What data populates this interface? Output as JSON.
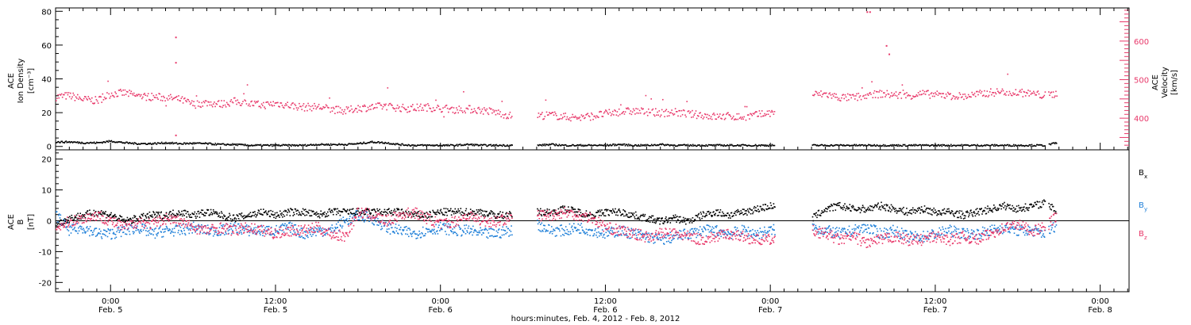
{
  "colors": {
    "density": "#000000",
    "velocity": "#e8386a",
    "bx": "#000000",
    "by": "#1e7fd8",
    "bz": "#e8386a",
    "axis": "#000000"
  },
  "footer": {
    "time_axis_label": "hours:minutes, Feb.  4, 2012 - Feb.  8, 2012"
  },
  "time_ticks": [
    {
      "hour": 4.0,
      "time": "0:00",
      "date": "Feb. 5"
    },
    {
      "hour": 16.0,
      "time": "12:00",
      "date": "Feb. 5"
    },
    {
      "hour": 28.0,
      "time": "0:00",
      "date": "Feb. 6"
    },
    {
      "hour": 40.0,
      "time": "12:00",
      "date": "Feb. 6"
    },
    {
      "hour": 52.0,
      "time": "0:00",
      "date": "Feb. 7"
    },
    {
      "hour": 64.0,
      "time": "12:00",
      "date": "Feb. 7"
    },
    {
      "hour": 76.0,
      "time": "0:00",
      "date": "Feb. 8"
    }
  ],
  "chart_data": [
    {
      "type": "scatter",
      "panel": "plasma",
      "x_unit": "hours after Feb. 4, 2012 20:00",
      "xlim": [
        0,
        78.1
      ],
      "ylabel_left": [
        "ACE",
        "Ion Density",
        "[cm⁻³]"
      ],
      "ylabel_right": [
        "ACE",
        "Velocity",
        "[km/s]"
      ],
      "ylim_left": [
        -2,
        82
      ],
      "ylim_right": [
        318,
        686
      ],
      "yticks_left": [
        "0",
        "20",
        "40",
        "60",
        "80"
      ],
      "yticks_right": [
        "400",
        "500",
        "600"
      ],
      "series": [
        {
          "key": "density",
          "axis": "left",
          "x": [
            0,
            1,
            2,
            3,
            4,
            5,
            6,
            7,
            8,
            9,
            10,
            11,
            12,
            13,
            14,
            15,
            16,
            17,
            18,
            19,
            20,
            21,
            22,
            23,
            24,
            25,
            26,
            27,
            28,
            29,
            30,
            31,
            32,
            33,
            35,
            36,
            37,
            38,
            39,
            40,
            41,
            42,
            43,
            44,
            45,
            46,
            47,
            48,
            49,
            50,
            51,
            52,
            53,
            55,
            56,
            57,
            58,
            59,
            60,
            61,
            62,
            63,
            64,
            65,
            66,
            67,
            68,
            69,
            70,
            71,
            72,
            72.8
          ],
          "y": [
            3,
            3,
            2.5,
            2.5,
            3.5,
            2.5,
            2,
            2,
            2.5,
            2,
            2.2,
            2,
            1.5,
            1.5,
            1,
            1,
            1,
            1,
            1,
            1.5,
            1.5,
            1.5,
            2,
            3,
            2.5,
            1.5,
            1,
            1,
            1,
            1,
            1.5,
            1,
            1,
            1,
            1,
            1.5,
            1,
            1,
            1,
            1,
            1.5,
            1,
            1,
            1.5,
            1,
            1,
            1,
            1,
            1,
            1,
            1,
            1,
            1,
            1,
            1,
            1,
            1,
            1,
            1,
            1,
            1,
            1,
            1,
            1,
            1,
            1,
            1,
            1,
            1,
            1,
            1,
            2.5
          ]
        },
        {
          "key": "velocity",
          "axis": "right",
          "x": [
            0,
            1,
            2,
            3,
            4,
            5,
            6,
            7,
            8,
            9,
            10,
            11,
            12,
            13,
            14,
            15,
            16,
            17,
            18,
            19,
            20,
            21,
            22,
            23,
            24,
            25,
            26,
            27,
            28,
            29,
            30,
            31,
            32,
            33,
            35,
            36,
            37,
            38,
            39,
            40,
            41,
            42,
            43,
            44,
            45,
            46,
            47,
            48,
            49,
            50,
            51,
            52,
            53,
            55,
            56,
            57,
            58,
            59,
            60,
            61,
            62,
            63,
            64,
            65,
            66,
            67,
            68,
            69,
            70,
            71,
            72,
            72.8
          ],
          "y": [
            457,
            460,
            450,
            447,
            465,
            467,
            458,
            457,
            455,
            450,
            437,
            442,
            438,
            445,
            440,
            435,
            440,
            435,
            430,
            431,
            425,
            420,
            428,
            430,
            433,
            428,
            428,
            430,
            427,
            425,
            425,
            422,
            417,
            408,
            408,
            410,
            405,
            403,
            407,
            413,
            418,
            420,
            418,
            415,
            417,
            412,
            410,
            405,
            407,
            404,
            410,
            415,
            422,
            463,
            464,
            455,
            455,
            460,
            465,
            462,
            460,
            465,
            462,
            460,
            458,
            463,
            468,
            470,
            468,
            465,
            460,
            465
          ]
        },
        {
          "key": "velocity_spikes",
          "axis": "left",
          "x": [
            8.7,
            8.7,
            8.7,
            59.0,
            59.2,
            60.4,
            60.6
          ],
          "y": [
            65,
            50,
            7,
            80,
            80,
            60,
            55
          ]
        }
      ]
    },
    {
      "type": "scatter",
      "panel": "magnetic_field",
      "x_unit": "hours after Feb. 4, 2012 20:00",
      "xlim": [
        0,
        78.1
      ],
      "ylabel_left": [
        "ACE",
        "B",
        "[nT]"
      ],
      "ylim": [
        -23,
        23
      ],
      "yticks": [
        "-20",
        "-10",
        "0",
        "10",
        "20"
      ],
      "series": [
        {
          "key": "bx",
          "name": "B",
          "subscript": "x",
          "x": [
            0,
            1,
            2,
            3,
            4,
            5,
            6,
            7,
            8,
            9,
            10,
            11,
            12,
            13,
            14,
            15,
            16,
            17,
            18,
            19,
            20,
            21,
            22,
            23,
            24,
            25,
            26,
            27,
            28,
            29,
            30,
            31,
            32,
            33,
            35,
            36,
            37,
            38,
            39,
            40,
            41,
            42,
            43,
            44,
            45,
            46,
            47,
            48,
            49,
            50,
            51,
            52,
            53,
            55,
            56,
            57,
            58,
            59,
            60,
            61,
            62,
            63,
            64,
            65,
            66,
            67,
            68,
            69,
            70,
            71,
            72,
            72.8
          ],
          "y": [
            -1,
            1,
            2,
            3,
            2,
            0,
            1,
            2,
            2,
            3,
            2,
            3,
            2,
            1,
            2,
            3,
            2,
            3,
            3,
            2,
            3,
            3,
            3,
            3,
            3,
            3,
            2,
            2,
            3,
            3,
            3,
            3,
            2,
            2,
            3,
            3,
            4,
            3,
            2,
            3,
            3,
            2,
            1,
            0,
            1,
            0,
            2,
            3,
            2,
            3,
            4,
            5,
            3,
            1,
            4,
            5,
            4,
            4,
            5,
            4,
            3,
            4,
            3,
            3,
            2,
            3,
            4,
            5,
            4,
            5,
            6,
            3
          ]
        },
        {
          "key": "by",
          "name": "B",
          "subscript": "y",
          "x": [
            0,
            1,
            2,
            3,
            4,
            5,
            6,
            7,
            8,
            9,
            10,
            11,
            12,
            13,
            14,
            15,
            16,
            17,
            18,
            19,
            20,
            21,
            22,
            23,
            24,
            25,
            26,
            27,
            28,
            29,
            30,
            31,
            32,
            33,
            35,
            36,
            37,
            38,
            39,
            40,
            41,
            42,
            43,
            44,
            45,
            46,
            47,
            48,
            49,
            50,
            51,
            52,
            53,
            55,
            56,
            57,
            58,
            59,
            60,
            61,
            62,
            63,
            64,
            65,
            66,
            67,
            68,
            69,
            70,
            71,
            72,
            72.8
          ],
          "y": [
            2,
            -3,
            -2,
            -4,
            -4,
            -3,
            -2,
            -4,
            -3,
            -3,
            -2,
            -3,
            -3,
            -2,
            -3,
            -3,
            -3,
            -2,
            -4,
            -3,
            -3,
            0,
            2,
            1,
            -2,
            -3,
            -4,
            -3,
            -2,
            -3,
            -3,
            -4,
            -4,
            -3,
            -1,
            -3,
            -3,
            -2,
            -3,
            -4,
            -3,
            -4,
            -5,
            -6,
            -5,
            -4,
            -3,
            -3,
            -4,
            -3,
            -4,
            -3,
            -2,
            -2,
            -3,
            -4,
            -3,
            -2,
            -4,
            -3,
            -5,
            -5,
            -4,
            -3,
            -4,
            -4,
            -3,
            -2,
            -3,
            -3,
            -4,
            -1
          ]
        },
        {
          "key": "bz",
          "name": "B",
          "subscript": "z",
          "x": [
            0,
            1,
            2,
            3,
            4,
            5,
            6,
            7,
            8,
            9,
            10,
            11,
            12,
            13,
            14,
            15,
            16,
            17,
            18,
            19,
            20,
            21,
            22,
            23,
            24,
            25,
            26,
            27,
            28,
            29,
            30,
            31,
            32,
            33,
            35,
            36,
            37,
            38,
            39,
            40,
            41,
            42,
            43,
            44,
            45,
            46,
            47,
            48,
            49,
            50,
            51,
            52,
            53,
            55,
            56,
            57,
            58,
            59,
            60,
            61,
            62,
            63,
            64,
            65,
            66,
            67,
            68,
            69,
            70,
            71,
            72,
            72.8
          ],
          "y": [
            -2,
            0,
            1,
            2,
            0,
            -2,
            0,
            -1,
            1,
            0,
            -2,
            -3,
            -2,
            -3,
            -2,
            -3,
            -4,
            -3,
            -3,
            -2,
            -4,
            -5,
            3,
            2,
            0,
            2,
            3,
            1,
            -1,
            0,
            2,
            0,
            0,
            1,
            2,
            2,
            3,
            2,
            1,
            -2,
            -3,
            -4,
            -5,
            -4,
            -4,
            -5,
            -6,
            -5,
            -4,
            -5,
            -6,
            -6,
            -7,
            -3,
            -4,
            -6,
            -5,
            -7,
            -6,
            -5,
            -6,
            -6,
            -5,
            -6,
            -5,
            -6,
            -4,
            -2,
            -1,
            -3,
            -2,
            2
          ]
        }
      ]
    }
  ]
}
